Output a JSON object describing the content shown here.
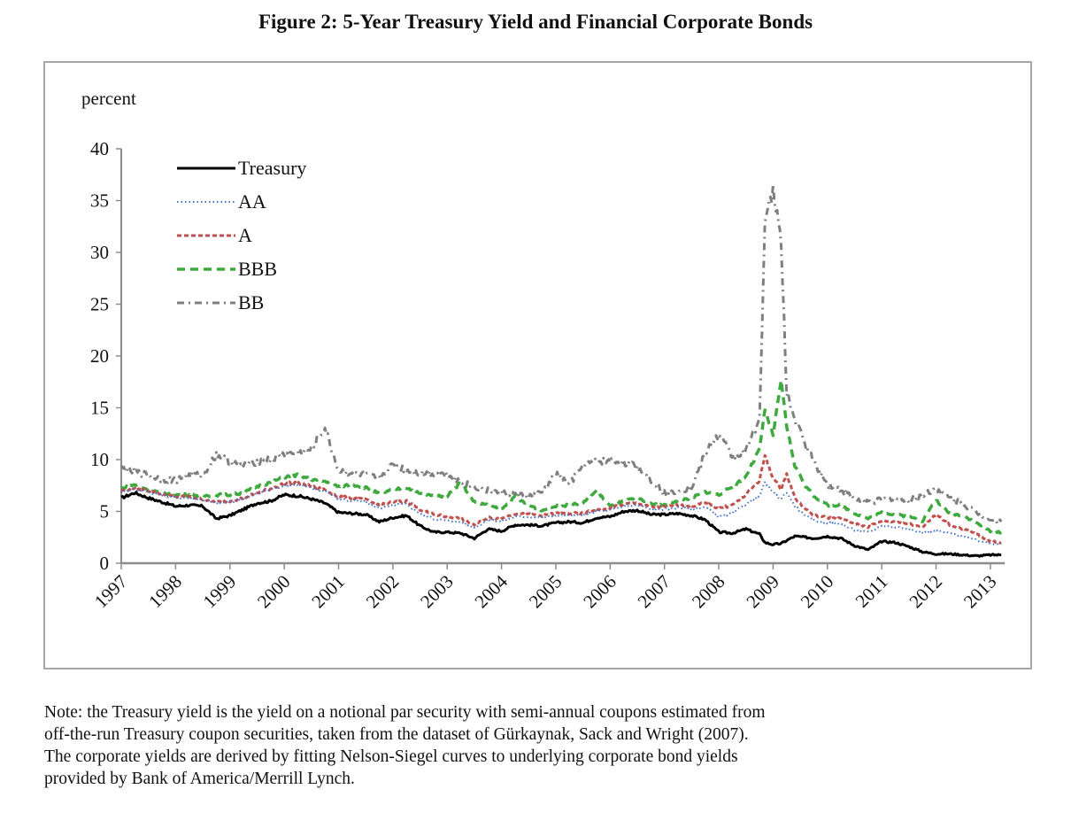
{
  "figure": {
    "title": "Figure 2: 5-Year Treasury Yield and Financial Corporate Bonds",
    "note_lines": [
      "Note: the Treasury yield is the yield on a notional par security with semi-annual coupons estimated from",
      "off-the-run Treasury coupon securities, taken from the dataset of Gürkaynak, Sack and Wright (2007).",
      "The corporate yields are derived by fitting Nelson-Siegel curves to underlying corporate bond yields",
      "provided by Bank of America/Merrill Lynch."
    ]
  },
  "chart_data": {
    "type": "line",
    "title": "Figure 2: 5-Year Treasury Yield and Financial Corporate Bonds",
    "xlabel": "",
    "ylabel": "percent",
    "xlim": [
      1997,
      2013.2
    ],
    "ylim": [
      0,
      40
    ],
    "yticks": [
      0,
      5,
      10,
      15,
      20,
      25,
      30,
      35,
      40
    ],
    "xticks": [
      "1997",
      "1998",
      "1999",
      "2000",
      "2001",
      "2002",
      "2003",
      "2004",
      "2005",
      "2006",
      "2007",
      "2008",
      "2009",
      "2010",
      "2011",
      "2012",
      "2013"
    ],
    "grid": false,
    "legend": "top-left",
    "x": [
      1997.0,
      1997.25,
      1997.5,
      1997.75,
      1998.0,
      1998.25,
      1998.5,
      1998.75,
      1999.0,
      1999.25,
      1999.5,
      1999.75,
      2000.0,
      2000.25,
      2000.5,
      2000.75,
      2001.0,
      2001.25,
      2001.5,
      2001.75,
      2002.0,
      2002.25,
      2002.5,
      2002.75,
      2003.0,
      2003.25,
      2003.5,
      2003.75,
      2004.0,
      2004.25,
      2004.5,
      2004.75,
      2005.0,
      2005.25,
      2005.5,
      2005.75,
      2006.0,
      2006.25,
      2006.5,
      2006.75,
      2007.0,
      2007.25,
      2007.5,
      2007.75,
      2008.0,
      2008.25,
      2008.5,
      2008.75,
      2008.85,
      2009.0,
      2009.15,
      2009.25,
      2009.4,
      2009.6,
      2009.75,
      2010.0,
      2010.25,
      2010.5,
      2010.75,
      2011.0,
      2011.25,
      2011.5,
      2011.75,
      2012.0,
      2012.25,
      2012.5,
      2012.75,
      2013.0,
      2013.2
    ],
    "series": [
      {
        "name": "Treasury",
        "color": "#000000",
        "style": "solid",
        "values": [
          6.3,
          6.8,
          6.3,
          5.9,
          5.5,
          5.6,
          5.5,
          4.3,
          4.6,
          5.2,
          5.8,
          6.0,
          6.6,
          6.5,
          6.2,
          5.8,
          4.9,
          4.8,
          4.7,
          4.0,
          4.4,
          4.6,
          3.6,
          3.0,
          3.0,
          2.9,
          2.4,
          3.3,
          3.1,
          3.7,
          3.7,
          3.6,
          3.9,
          4.0,
          3.9,
          4.4,
          4.5,
          5.0,
          5.1,
          4.7,
          4.7,
          4.8,
          4.6,
          4.2,
          3.0,
          2.9,
          3.3,
          2.8,
          2.0,
          1.8,
          1.9,
          2.2,
          2.6,
          2.5,
          2.4,
          2.6,
          2.4,
          1.7,
          1.3,
          2.1,
          2.0,
          1.6,
          1.1,
          0.9,
          0.9,
          0.8,
          0.7,
          0.8,
          0.8
        ]
      },
      {
        "name": "AA",
        "color": "#4472c4",
        "style": "dotted",
        "values": [
          6.9,
          7.2,
          6.9,
          6.6,
          6.3,
          6.3,
          6.1,
          5.8,
          5.9,
          6.2,
          6.7,
          7.1,
          7.5,
          7.6,
          7.2,
          7.0,
          6.2,
          6.0,
          5.9,
          5.3,
          5.6,
          5.7,
          4.8,
          4.3,
          4.1,
          4.0,
          3.4,
          4.2,
          4.0,
          4.5,
          4.5,
          4.4,
          4.6,
          4.6,
          4.6,
          5.0,
          5.1,
          5.5,
          5.6,
          5.2,
          5.2,
          5.4,
          5.2,
          5.4,
          4.5,
          4.8,
          5.7,
          6.5,
          7.8,
          6.8,
          6.2,
          6.9,
          5.5,
          4.6,
          4.1,
          3.9,
          3.8,
          3.2,
          3.0,
          3.6,
          3.5,
          3.3,
          2.9,
          3.2,
          2.9,
          2.6,
          2.2,
          1.9,
          1.9
        ]
      },
      {
        "name": "A",
        "color": "#c0504d",
        "style": "dashed",
        "values": [
          7.0,
          7.3,
          7.0,
          6.7,
          6.4,
          6.4,
          6.2,
          5.9,
          6.0,
          6.3,
          6.8,
          7.2,
          7.7,
          7.8,
          7.4,
          7.1,
          6.4,
          6.3,
          6.1,
          5.6,
          5.9,
          6.0,
          5.2,
          4.7,
          4.5,
          4.3,
          3.7,
          4.4,
          4.3,
          4.8,
          4.7,
          4.6,
          4.8,
          4.8,
          4.8,
          5.2,
          5.3,
          5.7,
          5.8,
          5.4,
          5.4,
          5.6,
          5.5,
          5.8,
          5.3,
          5.6,
          6.6,
          8.0,
          10.4,
          8.2,
          7.2,
          8.6,
          6.3,
          5.2,
          4.6,
          4.4,
          4.3,
          3.8,
          3.5,
          4.1,
          4.0,
          3.8,
          3.5,
          4.7,
          3.7,
          3.3,
          2.8,
          2.1,
          2.0
        ]
      },
      {
        "name": "BBB",
        "color": "#3eaa3e",
        "style": "longdash",
        "values": [
          7.2,
          7.6,
          7.1,
          6.8,
          6.6,
          6.6,
          6.5,
          6.6,
          6.6,
          6.8,
          7.4,
          7.8,
          8.3,
          8.5,
          8.1,
          7.9,
          7.4,
          7.6,
          7.3,
          6.7,
          7.1,
          7.3,
          6.7,
          6.5,
          6.5,
          7.8,
          5.9,
          5.6,
          5.2,
          6.4,
          5.6,
          5.1,
          5.5,
          5.6,
          5.8,
          7.0,
          5.5,
          6.0,
          6.3,
          5.7,
          5.6,
          6.1,
          6.3,
          6.9,
          6.6,
          7.4,
          8.4,
          11.0,
          14.8,
          12.4,
          17.6,
          13.2,
          9.4,
          7.4,
          6.5,
          5.6,
          5.6,
          4.8,
          4.3,
          4.9,
          4.7,
          4.5,
          4.1,
          6.1,
          4.8,
          4.6,
          3.9,
          3.1,
          3.0
        ]
      },
      {
        "name": "BB",
        "color": "#7f7f7f",
        "style": "dashdot",
        "values": [
          9.2,
          8.8,
          8.5,
          8.1,
          8.0,
          8.5,
          8.5,
          10.5,
          9.8,
          9.5,
          9.8,
          10.0,
          10.5,
          10.6,
          11.0,
          13.0,
          8.9,
          8.7,
          8.5,
          8.2,
          9.5,
          9.0,
          8.7,
          8.7,
          8.6,
          7.8,
          7.4,
          7.0,
          6.8,
          6.7,
          6.4,
          6.8,
          8.6,
          7.6,
          9.4,
          9.8,
          9.9,
          9.7,
          9.3,
          8.0,
          6.8,
          7.0,
          7.3,
          10.6,
          12.5,
          10.3,
          10.8,
          14.0,
          33.0,
          35.9,
          31.0,
          16.5,
          13.8,
          11.5,
          9.8,
          7.6,
          7.1,
          6.2,
          5.9,
          6.1,
          6.3,
          6.0,
          6.6,
          7.2,
          6.3,
          5.7,
          4.9,
          4.2,
          4.0
        ]
      }
    ]
  }
}
